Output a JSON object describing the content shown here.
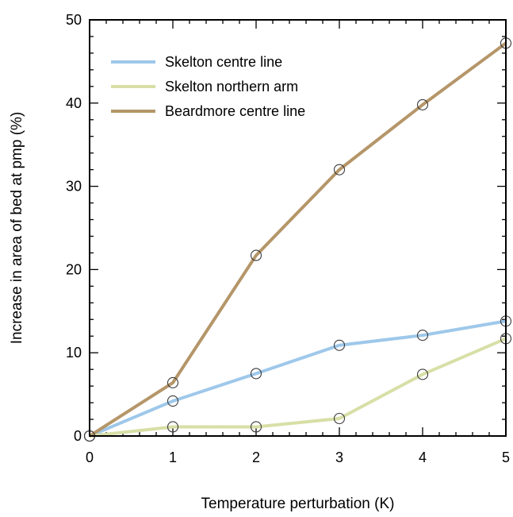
{
  "chart_data": {
    "type": "line",
    "title": "",
    "xlabel": "Temperature perturbation (K)",
    "ylabel": "Increase in area of bed at pmp (%)",
    "xlim": [
      0,
      5
    ],
    "ylim": [
      0,
      50
    ],
    "x_ticks": [
      "0",
      "1",
      "2",
      "3",
      "4",
      "5"
    ],
    "y_ticks": [
      "0",
      "10",
      "20",
      "30",
      "40",
      "50"
    ],
    "x": [
      0,
      1,
      2,
      3,
      4,
      5
    ],
    "grid": false,
    "legend_position": "top-left",
    "marker": "open-circle",
    "series": [
      {
        "name": "Skelton centre line",
        "color": "#9ec8ea",
        "values": [
          0,
          4.2,
          7.5,
          10.9,
          12.1,
          13.8
        ]
      },
      {
        "name": "Skelton northern arm",
        "color": "#d8dfa6",
        "values": [
          0,
          1.1,
          1.1,
          2.1,
          7.4,
          11.7
        ]
      },
      {
        "name": "Beardmore centre line",
        "color": "#b59669",
        "values": [
          0,
          6.4,
          21.7,
          32.0,
          39.8,
          47.2
        ]
      }
    ]
  }
}
